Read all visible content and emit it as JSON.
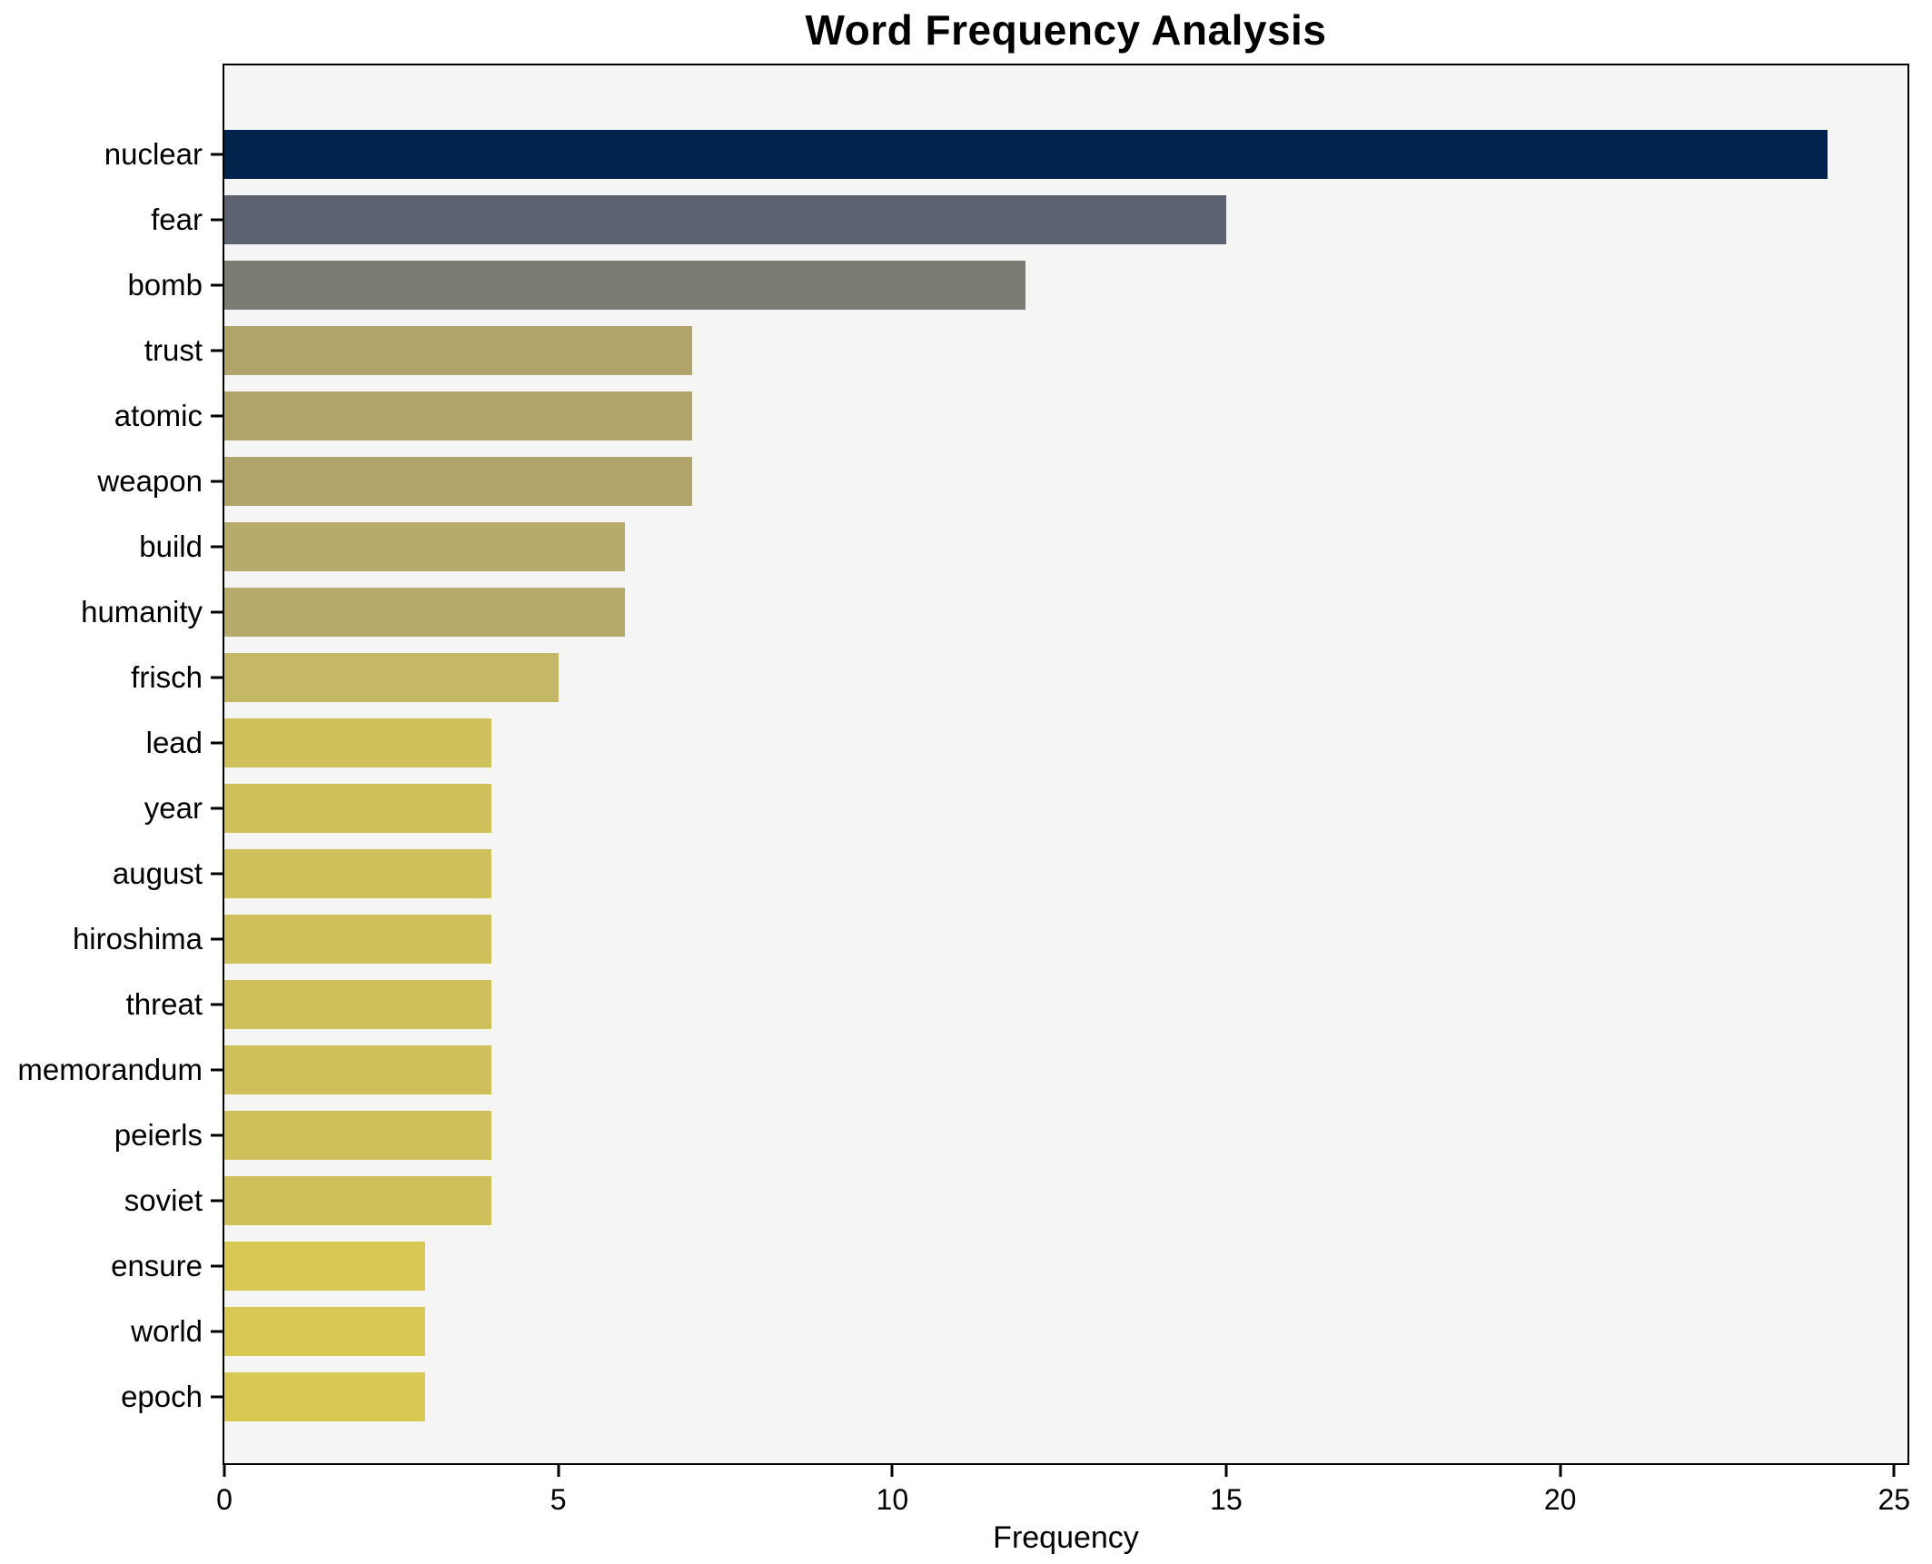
{
  "chart_data": {
    "type": "bar",
    "orientation": "horizontal",
    "title": "Word Frequency Analysis",
    "xlabel": "Frequency",
    "ylabel": "",
    "categories": [
      "nuclear",
      "fear",
      "bomb",
      "trust",
      "atomic",
      "weapon",
      "build",
      "humanity",
      "frisch",
      "lead",
      "year",
      "august",
      "hiroshima",
      "threat",
      "memorandum",
      "peierls",
      "soviet",
      "ensure",
      "world",
      "epoch"
    ],
    "values": [
      24,
      15,
      12,
      7,
      7,
      7,
      6,
      6,
      5,
      4,
      4,
      4,
      4,
      4,
      4,
      4,
      4,
      3,
      3,
      3
    ],
    "bar_colors": [
      "#02234c",
      "#5d6270",
      "#7b7b73",
      "#b0a46b",
      "#b0a46b",
      "#b0a46b",
      "#b6ab6a",
      "#b6ab6a",
      "#c4b765",
      "#d0c05c",
      "#d0c05c",
      "#d0c05c",
      "#d0c05c",
      "#d0c05c",
      "#d0c05c",
      "#d0c05c",
      "#d0c05c",
      "#d8c955",
      "#d8c955",
      "#d8c955"
    ],
    "xticks": [
      0,
      5,
      10,
      15,
      20,
      25
    ],
    "xlim": [
      0,
      25.2
    ],
    "grid": false,
    "legend_position": "none",
    "plot_background": "#f5f5f6",
    "frame_color": "#000000",
    "bar_height_frac": 0.76
  }
}
